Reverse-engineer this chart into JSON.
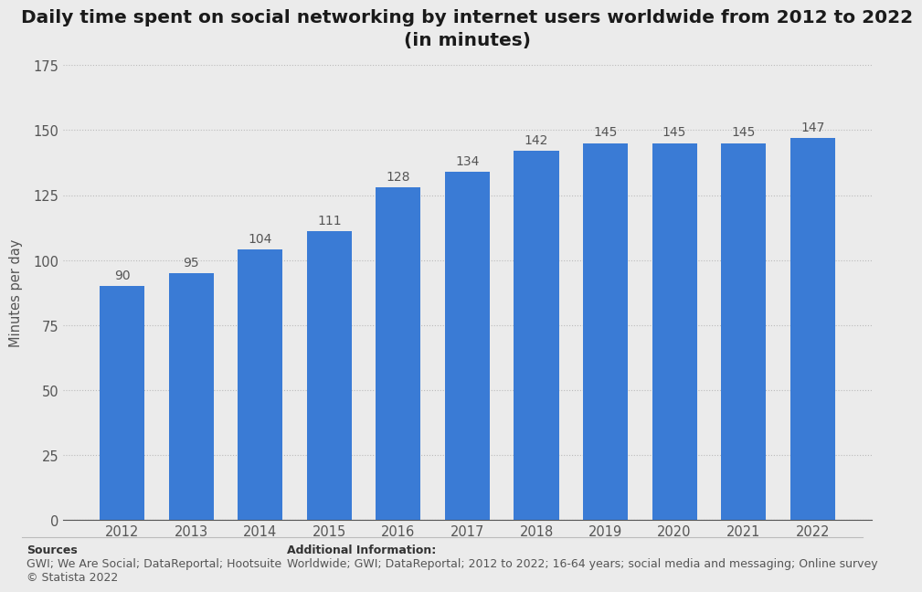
{
  "title": "Daily time spent on social networking by internet users worldwide from 2012 to 2022\n(in minutes)",
  "years": [
    "2012",
    "2013",
    "2014",
    "2015",
    "2016",
    "2017",
    "2018",
    "2019",
    "2020",
    "2021",
    "2022"
  ],
  "values": [
    90,
    95,
    104,
    111,
    128,
    134,
    142,
    145,
    145,
    145,
    147
  ],
  "bar_color": "#3a7bd5",
  "ylabel": "Minutes per day",
  "ylim": [
    0,
    175
  ],
  "yticks": [
    0,
    25,
    50,
    75,
    100,
    125,
    150,
    175
  ],
  "background_color": "#ebebeb",
  "plot_background_color": "#ebebeb",
  "title_fontsize": 14.5,
  "label_fontsize": 10.5,
  "tick_fontsize": 10.5,
  "value_fontsize": 10,
  "sources_bold": "Sources",
  "sources_body": "GWI; We Are Social; DataReportal; Hootsuite\n© Statista 2022",
  "additional_bold": "Additional Information:",
  "additional_body": "Worldwide; GWI; DataReportal; 2012 to 2022; 16-64 years; social media and messaging; Online survey",
  "footer_fontsize": 9
}
